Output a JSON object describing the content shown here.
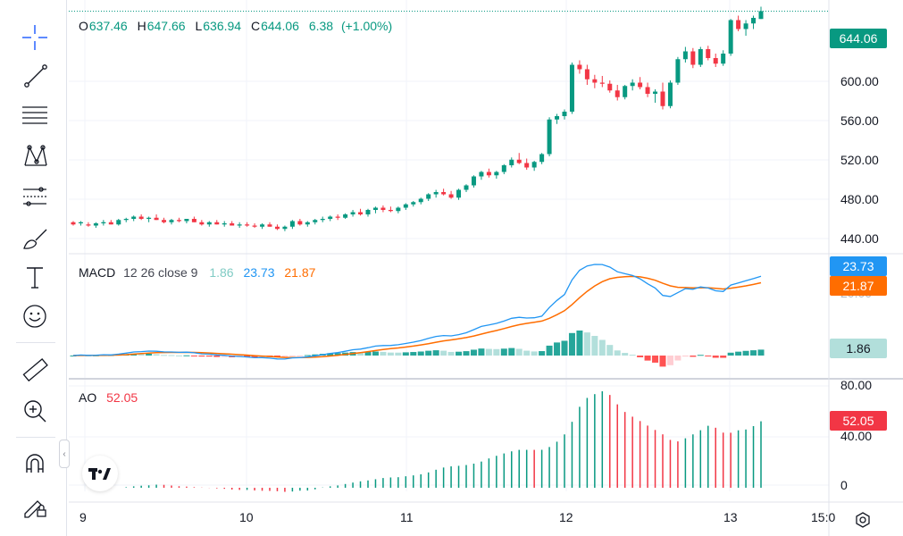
{
  "legend": {
    "open_key": "O",
    "open": "637.46",
    "high_key": "H",
    "high": "647.66",
    "low_key": "L",
    "low": "636.94",
    "close_key": "C",
    "close": "644.06",
    "change": "6.38",
    "change_pct": "(+1.00%)"
  },
  "macd": {
    "label": "MACD",
    "params": "12 26 close 9",
    "hist": "1.86",
    "macd": "23.73",
    "signal": "21.87",
    "colors": {
      "macd": "#2196f3",
      "signal": "#ff6d00",
      "hist_up": "#26a69a",
      "hist_up_weak": "#b2dfdb",
      "hist_down": "#ff5252",
      "hist_down_weak": "#ffcdd2"
    }
  },
  "ao": {
    "label": "AO",
    "value": "52.05"
  },
  "price_axis": {
    "current": "644.06",
    "labels": [
      "600.00",
      "560.00",
      "520.00",
      "480.00",
      "440.00"
    ]
  },
  "macd_axis": {
    "hidden_label": "20.00"
  },
  "ao_axis": {
    "labels": [
      "80.00",
      "40.00",
      "0"
    ]
  },
  "time_axis": {
    "labels": [
      "9",
      "10",
      "11",
      "12",
      "13",
      "15:0"
    ]
  },
  "colors": {
    "up": "#089981",
    "down": "#f23645"
  },
  "icons": [
    "crosshair-icon",
    "trend-line-icon",
    "fib-lines-icon",
    "pattern-icon",
    "projection-icon",
    "brush-icon",
    "text-icon",
    "emoji-icon",
    "ruler-icon",
    "zoom-in-icon",
    "magnet-icon",
    "lock-pencil-icon"
  ],
  "chart_data": {
    "type": "candlestick",
    "x_start_label": "9",
    "x_end_label": "13",
    "y_range": [
      430,
      650
    ],
    "candles": [
      [
        455,
        456,
        452,
        453
      ],
      [
        454,
        456,
        452,
        455
      ],
      [
        453,
        455,
        451,
        452
      ],
      [
        452,
        455,
        450,
        454
      ],
      [
        454,
        457,
        452,
        455
      ],
      [
        455,
        457,
        453,
        453
      ],
      [
        453,
        458,
        452,
        457
      ],
      [
        457,
        459,
        455,
        458
      ],
      [
        458,
        461,
        456,
        460
      ],
      [
        460,
        462,
        457,
        458
      ],
      [
        458,
        460,
        455,
        459
      ],
      [
        459,
        462,
        457,
        457
      ],
      [
        457,
        459,
        454,
        455
      ],
      [
        455,
        458,
        453,
        457
      ],
      [
        457,
        459,
        455,
        456
      ],
      [
        456,
        458,
        454,
        458
      ],
      [
        458,
        460,
        455,
        455
      ],
      [
        455,
        457,
        452,
        453
      ],
      [
        453,
        456,
        451,
        455
      ],
      [
        455,
        457,
        453,
        453
      ],
      [
        453,
        456,
        451,
        454
      ],
      [
        454,
        456,
        452,
        452
      ],
      [
        452,
        455,
        450,
        453
      ],
      [
        453,
        455,
        451,
        452
      ],
      [
        452,
        454,
        450,
        451
      ],
      [
        451,
        454,
        449,
        453
      ],
      [
        453,
        455,
        451,
        451
      ],
      [
        451,
        453,
        448,
        449
      ],
      [
        449,
        452,
        447,
        451
      ],
      [
        451,
        457,
        449,
        456
      ],
      [
        456,
        458,
        452,
        453
      ],
      [
        453,
        456,
        451,
        455
      ],
      [
        455,
        458,
        453,
        457
      ],
      [
        457,
        460,
        455,
        458
      ],
      [
        458,
        461,
        456,
        460
      ],
      [
        460,
        462,
        457,
        459
      ],
      [
        459,
        463,
        458,
        462
      ],
      [
        462,
        466,
        460,
        464
      ],
      [
        464,
        467,
        461,
        462
      ],
      [
        462,
        467,
        460,
        466
      ],
      [
        466,
        469,
        463,
        468
      ],
      [
        468,
        470,
        464,
        466
      ],
      [
        466,
        469,
        464,
        465
      ],
      [
        465,
        469,
        463,
        468
      ],
      [
        468,
        472,
        466,
        471
      ],
      [
        471,
        474,
        469,
        473
      ],
      [
        473,
        477,
        471,
        476
      ],
      [
        476,
        481,
        474,
        480
      ],
      [
        480,
        484,
        477,
        482
      ],
      [
        482,
        485,
        479,
        480
      ],
      [
        480,
        483,
        476,
        477
      ],
      [
        477,
        485,
        475,
        484
      ],
      [
        484,
        489,
        482,
        488
      ],
      [
        488,
        497,
        486,
        496
      ],
      [
        496,
        501,
        493,
        500
      ],
      [
        500,
        503,
        495,
        497
      ],
      [
        497,
        501,
        494,
        500
      ],
      [
        500,
        507,
        498,
        506
      ],
      [
        506,
        513,
        504,
        511
      ],
      [
        511,
        517,
        507,
        508
      ],
      [
        508,
        512,
        502,
        504
      ],
      [
        504,
        510,
        501,
        509
      ],
      [
        509,
        517,
        507,
        516
      ],
      [
        516,
        549,
        514,
        547
      ],
      [
        547,
        552,
        543,
        550
      ],
      [
        550,
        556,
        547,
        554
      ],
      [
        554,
        598,
        552,
        596
      ],
      [
        596,
        600,
        588,
        592
      ],
      [
        592,
        596,
        578,
        583
      ],
      [
        583,
        587,
        575,
        580
      ],
      [
        580,
        586,
        576,
        579
      ],
      [
        579,
        582,
        571,
        573
      ],
      [
        573,
        578,
        564,
        567
      ],
      [
        567,
        578,
        565,
        577
      ],
      [
        577,
        583,
        573,
        580
      ],
      [
        580,
        585,
        574,
        576
      ],
      [
        576,
        580,
        567,
        570
      ],
      [
        570,
        574,
        562,
        572
      ],
      [
        572,
        580,
        556,
        559
      ],
      [
        559,
        582,
        557,
        580
      ],
      [
        580,
        603,
        578,
        601
      ],
      [
        601,
        612,
        598,
        608
      ],
      [
        608,
        611,
        593,
        596
      ],
      [
        596,
        612,
        594,
        610
      ],
      [
        610,
        613,
        600,
        602
      ],
      [
        602,
        606,
        594,
        597
      ],
      [
        597,
        609,
        595,
        606
      ],
      [
        606,
        637,
        604,
        636
      ],
      [
        636,
        640,
        626,
        628
      ],
      [
        628,
        636,
        622,
        633
      ],
      [
        633,
        640,
        628,
        638
      ],
      [
        637,
        648,
        637,
        644
      ]
    ],
    "macd_series": {
      "macd_last": 23.73,
      "signal_last": 21.87,
      "hist_last": 1.86
    },
    "ao_last": 52.05
  }
}
